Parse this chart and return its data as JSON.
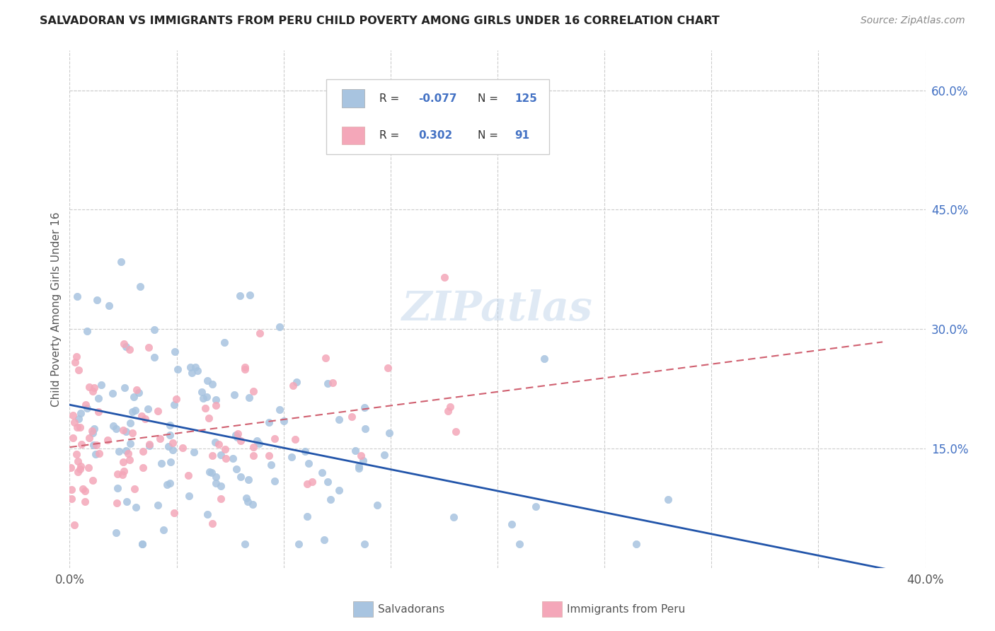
{
  "title": "SALVADORAN VS IMMIGRANTS FROM PERU CHILD POVERTY AMONG GIRLS UNDER 16 CORRELATION CHART",
  "source": "Source: ZipAtlas.com",
  "ylabel": "Child Poverty Among Girls Under 16",
  "xlim": [
    0.0,
    0.4
  ],
  "ylim": [
    0.0,
    0.65
  ],
  "xtick_vals": [
    0.0,
    0.05,
    0.1,
    0.15,
    0.2,
    0.25,
    0.3,
    0.35,
    0.4
  ],
  "xtick_labels": [
    "0.0%",
    "",
    "",
    "",
    "",
    "",
    "",
    "",
    "40.0%"
  ],
  "ytick_positions_right": [
    0.6,
    0.45,
    0.3,
    0.15
  ],
  "ytick_labels_right": [
    "60.0%",
    "45.0%",
    "30.0%",
    "15.0%"
  ],
  "color_blue": "#a8c4e0",
  "color_pink": "#f4a7b9",
  "line_blue": "#2255aa",
  "line_pink": "#d06070",
  "watermark": "ZIPatlas",
  "background_color": "#ffffff",
  "grid_color": "#cccccc",
  "title_color": "#222222",
  "axis_label_color": "#555555",
  "tick_color": "#4472c4",
  "legend_text_blue": "#4472c4",
  "blue_seed": 42,
  "pink_seed": 77,
  "n_blue": 125,
  "n_pink": 91
}
